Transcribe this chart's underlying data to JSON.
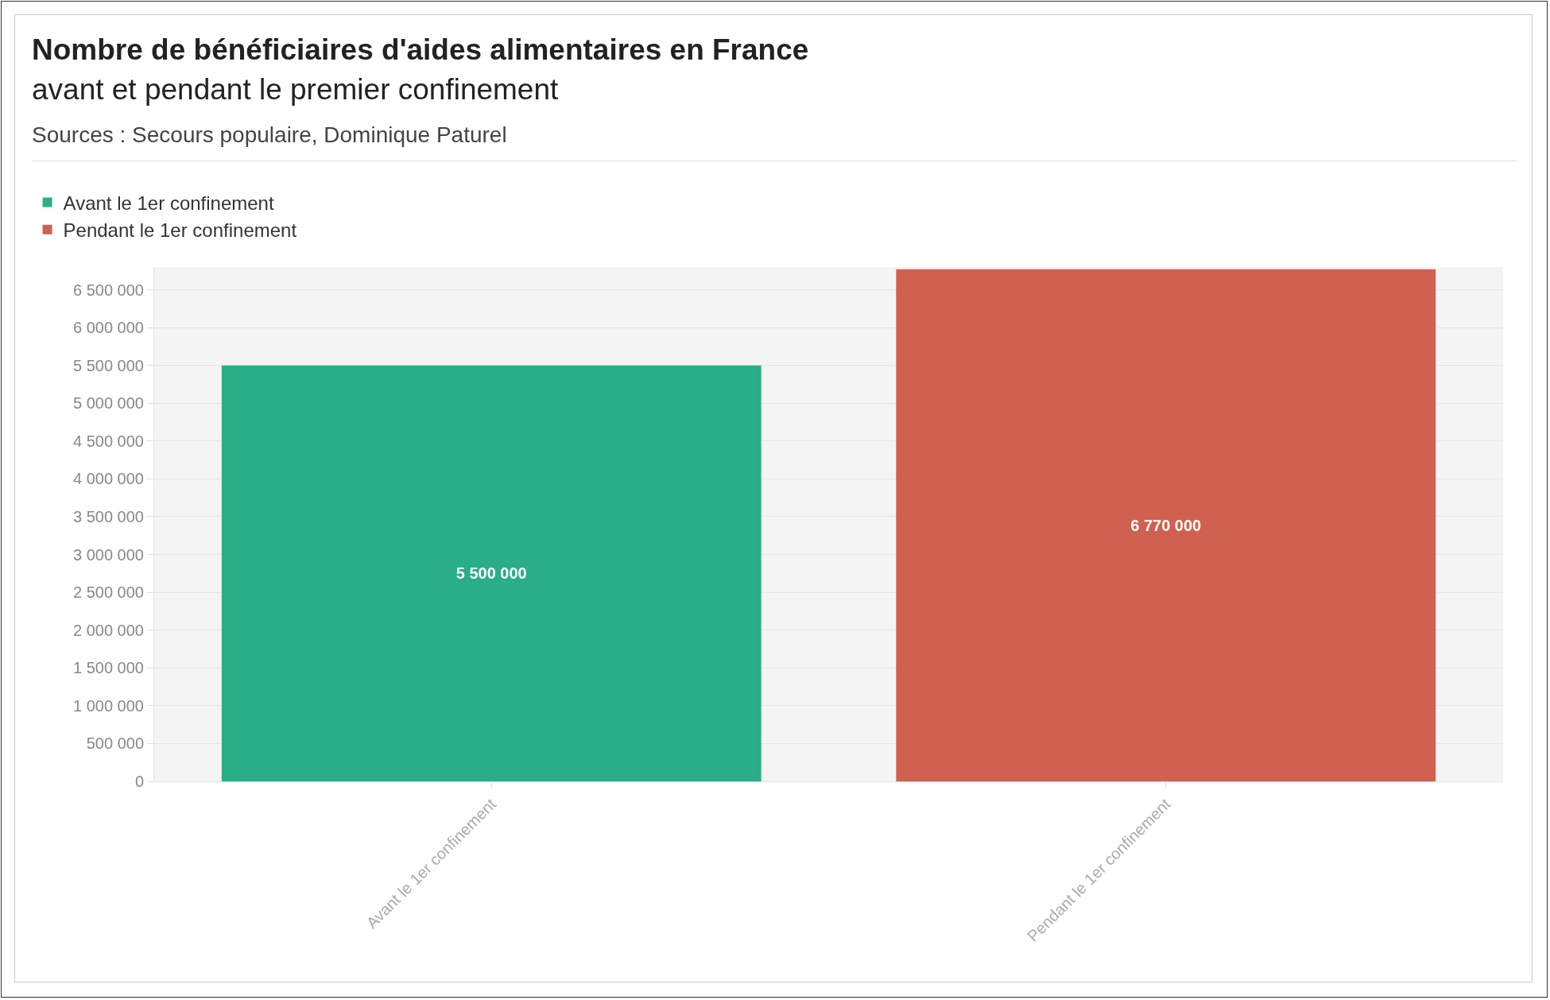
{
  "chart_data": {
    "type": "bar",
    "title": "Nombre de bénéficiaires d'aides alimentaires en France",
    "subtitle": "avant et pendant le premier confinement",
    "annotations": [
      "Sources : Secours populaire, Dominique Paturel"
    ],
    "categories": [
      "Avant le 1er confinement",
      "Pendant le 1er confinement"
    ],
    "series": [
      {
        "name": "Avant le 1er confinement",
        "color": "#2aae88",
        "values": [
          5500000,
          null
        ],
        "value_labels": [
          "5 500 000",
          null
        ]
      },
      {
        "name": "Pendant le 1er confinement",
        "color": "#d06150",
        "values": [
          null,
          6770000
        ],
        "value_labels": [
          null,
          "6 770 000"
        ]
      }
    ],
    "ylim": [
      0,
      6800000
    ],
    "yticks": [
      {
        "value": 0,
        "label": "0"
      },
      {
        "value": 500000,
        "label": "500 000"
      },
      {
        "value": 1000000,
        "label": "1 000 000"
      },
      {
        "value": 1500000,
        "label": "1 500 000"
      },
      {
        "value": 2000000,
        "label": "2 000 000"
      },
      {
        "value": 2500000,
        "label": "2 500 000"
      },
      {
        "value": 3000000,
        "label": "3 000 000"
      },
      {
        "value": 3500000,
        "label": "3 500 000"
      },
      {
        "value": 4000000,
        "label": "4 000 000"
      },
      {
        "value": 4500000,
        "label": "4 500 000"
      },
      {
        "value": 5000000,
        "label": "5 000 000"
      },
      {
        "value": 5500000,
        "label": "5 500 000"
      },
      {
        "value": 6000000,
        "label": "6 000 000"
      },
      {
        "value": 6500000,
        "label": "6 500 000"
      }
    ],
    "grid": "y",
    "legend": "top left"
  }
}
